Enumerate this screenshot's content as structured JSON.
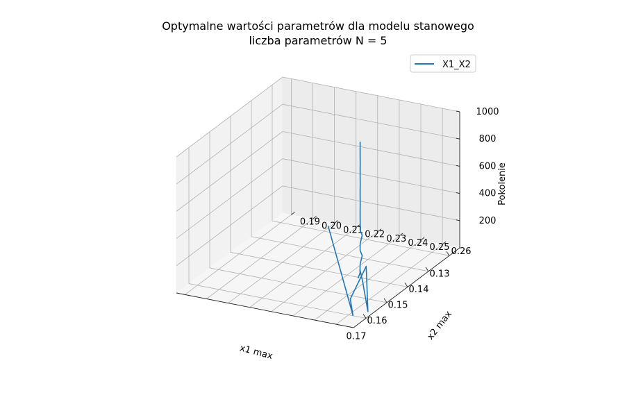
{
  "chart_data": {
    "type": "line",
    "title": "Optymalne wartości parametrów dla modelu stanowego",
    "subtitle": "liczba parametrów N = 5",
    "xlabel": "x1 max",
    "ylabel": "x2 max",
    "zlabel": "Pokolenie",
    "xlim": [
      0.125,
      0.176
    ],
    "ylim": [
      0.186,
      0.268
    ],
    "zlim": [
      0,
      1000
    ],
    "x_ticks": [
      "0.13",
      "0.14",
      "0.15",
      "0.16",
      "0.17"
    ],
    "y_ticks": [
      "0.19",
      "0.20",
      "0.21",
      "0.22",
      "0.23",
      "0.24",
      "0.25",
      "0.26"
    ],
    "z_ticks": [
      "200",
      "400",
      "600",
      "800",
      "1000"
    ],
    "grid": true,
    "legend_position": "top-right",
    "colors": {
      "series": "#1f77b4"
    },
    "series": [
      {
        "name": "X1_X2",
        "x": [
          0.127,
          0.17,
          0.162,
          0.144,
          0.167,
          0.152,
          0.147,
          0.149,
          0.152,
          0.15,
          0.149,
          0.15,
          0.149,
          0.15,
          0.15,
          0.149,
          0.15,
          0.151,
          0.15,
          0.15,
          0.151,
          0.15,
          0.15,
          0.151,
          0.15,
          0.15,
          0.151,
          0.15,
          0.15
        ],
        "y": [
          0.209,
          0.262,
          0.253,
          0.243,
          0.266,
          0.249,
          0.243,
          0.245,
          0.247,
          0.246,
          0.245,
          0.246,
          0.246,
          0.246,
          0.246,
          0.246,
          0.246,
          0.247,
          0.246,
          0.246,
          0.247,
          0.246,
          0.246,
          0.247,
          0.246,
          0.246,
          0.247,
          0.246,
          0.246
        ],
        "z": [
          1,
          2,
          3,
          5,
          8,
          12,
          15,
          20,
          25,
          35,
          60,
          100,
          150,
          200,
          250,
          300,
          350,
          400,
          450,
          500,
          550,
          600,
          650,
          700,
          750,
          800,
          850,
          900,
          1000
        ]
      }
    ]
  }
}
